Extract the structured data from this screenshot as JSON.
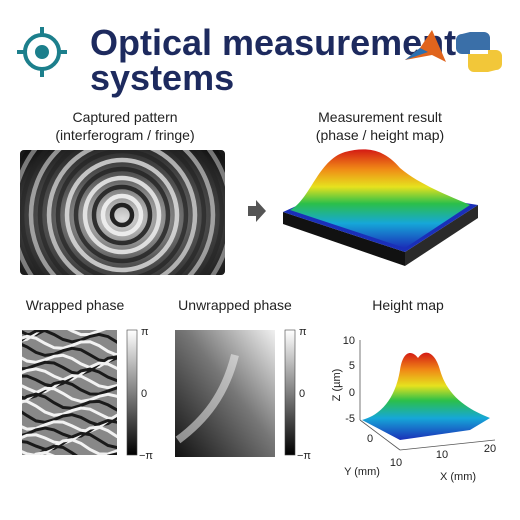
{
  "header": {
    "title_lines": [
      "Optical measurement",
      "systems"
    ]
  },
  "top": {
    "captured": {
      "title": "Captured pattern",
      "subtitle": "(interferogram / fringe)"
    },
    "result": {
      "title": "Measurement result",
      "subtitle": "(phase / height map)"
    }
  },
  "bottom": {
    "wrapped": {
      "title": "Wrapped phase",
      "colorbar": [
        "π",
        "0",
        "−π"
      ]
    },
    "unwrapped": {
      "title": "Unwrapped phase",
      "colorbar": [
        "π",
        "0",
        "−π"
      ]
    },
    "height_map": {
      "title": "Height map",
      "z_label": "Z (µm)",
      "z_ticks": [
        10,
        5,
        0,
        -5
      ],
      "y_label": "Y (mm)",
      "y_ticks": [
        0,
        10
      ],
      "x_label": "X (mm)",
      "x_ticks": [
        10,
        20
      ]
    }
  }
}
